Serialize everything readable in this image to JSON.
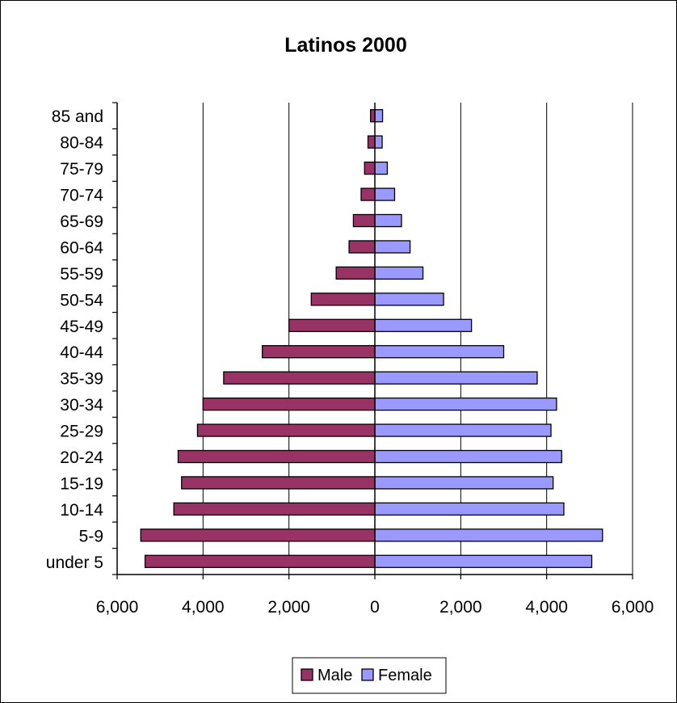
{
  "chart_data": {
    "type": "bar",
    "orientation": "horizontal",
    "layout": "population-pyramid",
    "title": "Latinos 2000",
    "xlabel": "",
    "ylabel": "",
    "categories": [
      "under 5",
      "5-9",
      "10-14",
      "15-19",
      "20-24",
      "25-29",
      "30-34",
      "35-39",
      "40-44",
      "45-49",
      "50-54",
      "55-59",
      "60-64",
      "65-69",
      "70-74",
      "75-79",
      "80-84",
      "85 and"
    ],
    "series": [
      {
        "name": "Male",
        "color": "#993366",
        "values": [
          5350,
          5450,
          4680,
          4500,
          4580,
          4130,
          4000,
          3520,
          2620,
          2000,
          1480,
          900,
          600,
          500,
          320,
          240,
          160,
          100
        ]
      },
      {
        "name": "Female",
        "color": "#9999ff",
        "values": [
          5050,
          5300,
          4400,
          4150,
          4350,
          4100,
          4230,
          3780,
          3000,
          2250,
          1600,
          1120,
          820,
          620,
          460,
          290,
          170,
          180
        ]
      }
    ],
    "xlim": [
      -6000,
      6000
    ],
    "xticks": [
      -6000,
      -4000,
      -2000,
      0,
      2000,
      4000,
      6000
    ],
    "xtick_labels": [
      "6,000",
      "4,000",
      "2,000",
      "0",
      "2,000",
      "4,000",
      "6,000"
    ],
    "grid": "vertical",
    "legend_position": "bottom"
  }
}
